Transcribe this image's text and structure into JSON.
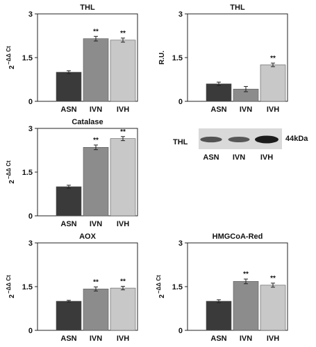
{
  "chart_data": [
    {
      "type": "bar",
      "title": "THL",
      "ylabel": {
        "base": "2",
        "sup": "−ΔΔ Ct"
      },
      "categories": [
        "ASN",
        "IVN",
        "IVH"
      ],
      "values": [
        1.0,
        2.15,
        2.1
      ],
      "errors": [
        0.05,
        0.08,
        0.07
      ],
      "significance": [
        "",
        "**",
        "**"
      ],
      "ylim": [
        0,
        3
      ],
      "yticks": [
        "0",
        "1.5",
        "3"
      ],
      "colors": [
        "#3a3a3a",
        "#8c8c8c",
        "#c8c8c8"
      ]
    },
    {
      "type": "bar",
      "title": "THL",
      "ylabel": {
        "base": "R.U.",
        "sup": ""
      },
      "categories": [
        "ASN",
        "IVN",
        "IVH"
      ],
      "values": [
        0.6,
        0.42,
        1.25
      ],
      "errors": [
        0.06,
        0.09,
        0.06
      ],
      "significance": [
        "",
        "",
        "**"
      ],
      "ylim": [
        0,
        3
      ],
      "yticks": [
        "0",
        "1.5",
        "3"
      ],
      "colors": [
        "#3a3a3a",
        "#8c8c8c",
        "#c8c8c8"
      ]
    },
    {
      "type": "bar",
      "title": "Catalase",
      "ylabel": {
        "base": "2",
        "sup": "−ΔΔ Ct"
      },
      "categories": [
        "ASN",
        "IVN",
        "IVH"
      ],
      "values": [
        1.0,
        2.35,
        2.65
      ],
      "errors": [
        0.05,
        0.08,
        0.07
      ],
      "significance": [
        "",
        "**",
        "**"
      ],
      "ylim": [
        0,
        3
      ],
      "yticks": [
        "0",
        "1.5",
        "3"
      ],
      "colors": [
        "#3a3a3a",
        "#8c8c8c",
        "#c8c8c8"
      ]
    },
    {
      "type": "bar",
      "title": "AOX",
      "ylabel": {
        "base": "2",
        "sup": "−ΔΔ Ct"
      },
      "categories": [
        "ASN",
        "IVN",
        "IVH"
      ],
      "values": [
        1.0,
        1.42,
        1.45
      ],
      "errors": [
        0.03,
        0.07,
        0.06
      ],
      "significance": [
        "",
        "**",
        "**"
      ],
      "ylim": [
        0,
        3
      ],
      "yticks": [
        "0",
        "1.5",
        "3"
      ],
      "colors": [
        "#3a3a3a",
        "#8c8c8c",
        "#c8c8c8"
      ]
    },
    {
      "type": "bar",
      "title": "HMGCoA-Red",
      "ylabel": {
        "base": "2",
        "sup": "−ΔΔ Ct"
      },
      "categories": [
        "ASN",
        "IVN",
        "IVH"
      ],
      "values": [
        1.0,
        1.68,
        1.55
      ],
      "errors": [
        0.05,
        0.08,
        0.07
      ],
      "significance": [
        "",
        "**",
        "**"
      ],
      "ylim": [
        0,
        3
      ],
      "yticks": [
        "0",
        "1.5",
        "3"
      ],
      "colors": [
        "#3a3a3a",
        "#8c8c8c",
        "#c8c8c8"
      ]
    }
  ],
  "blot": {
    "protein_label": "THL",
    "size_label": "44kDa",
    "lanes": [
      "ASN",
      "IVN",
      "IVH"
    ],
    "band_intensity": [
      0.55,
      0.5,
      1.0
    ]
  }
}
